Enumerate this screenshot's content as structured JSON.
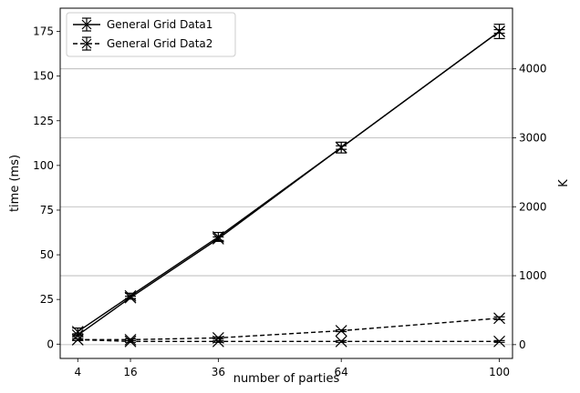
{
  "chart_data": {
    "type": "line",
    "xlabel": "number of parties",
    "ylabel": "time (ms)",
    "y2label": "K",
    "x": [
      4,
      16,
      36,
      64,
      100
    ],
    "xticks": [
      4,
      16,
      36,
      64,
      100
    ],
    "xlim": [
      0,
      103
    ],
    "ylim": [
      -8,
      188
    ],
    "yticks": [
      0,
      25,
      50,
      75,
      100,
      125,
      150,
      175
    ],
    "y2lim": [
      -200,
      4880
    ],
    "y2ticks": [
      0,
      1000,
      2000,
      3000,
      4000
    ],
    "grid": "right-axis horizontal only",
    "legend": {
      "placement": "upper-left",
      "entries": [
        "General Grid Data1",
        "General Grid Data2"
      ]
    },
    "series": [
      {
        "name": "General Grid Data1",
        "axis": "left",
        "style": "solid",
        "values": [
          7,
          27,
          60,
          110,
          175
        ],
        "errors": [
          2,
          1.5,
          2.5,
          3,
          4
        ]
      },
      {
        "name": "General Grid Data1",
        "axis": "left",
        "style": "solid",
        "values": [
          5,
          26,
          59,
          110,
          175
        ],
        "errors": [
          0.8,
          0.8,
          1,
          1,
          1
        ]
      },
      {
        "name": "General Grid Data2",
        "axis": "left",
        "style": "dashed",
        "values": [
          2.5,
          2.5,
          3.5,
          7.5,
          14.5
        ],
        "errors": [
          0.5,
          0.5,
          0.5,
          0.5,
          0.8
        ]
      },
      {
        "name": "General Grid Data2",
        "axis": "left",
        "style": "dashed",
        "values": [
          2.5,
          1.5,
          1.5,
          1.5,
          1.5
        ],
        "errors": [
          0.5,
          0.5,
          0.5,
          0.5,
          0.5
        ]
      }
    ]
  }
}
